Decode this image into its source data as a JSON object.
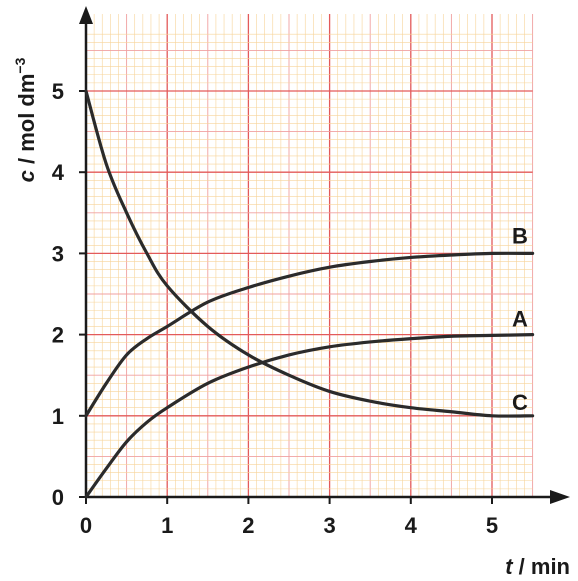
{
  "chart_data": {
    "type": "line",
    "xlabel": {
      "var": "t",
      "rest": " / min"
    },
    "ylabel": {
      "var": "c",
      "rest": " / mol dm",
      "sup": "−3"
    },
    "xlim": [
      0,
      5.5
    ],
    "ylim": [
      0,
      5.7
    ],
    "x_ticks": [
      0,
      1,
      2,
      3,
      4,
      5
    ],
    "y_ticks": [
      0,
      1,
      2,
      3,
      4,
      5
    ],
    "grid": true,
    "colors": {
      "grid_major": "#e35a5a",
      "grid_mid": "#f0a0a0",
      "grid_minor": "#f7d49a",
      "axis": "#1a1a1a",
      "line": "#2b2b2b"
    },
    "series": [
      {
        "name": "A",
        "x": [
          0,
          0.25,
          0.5,
          0.75,
          1,
          1.5,
          2,
          2.5,
          3,
          3.5,
          4,
          4.5,
          5,
          5.5
        ],
        "y": [
          0,
          0.35,
          0.68,
          0.92,
          1.1,
          1.4,
          1.6,
          1.75,
          1.85,
          1.91,
          1.95,
          1.98,
          1.99,
          2.0
        ]
      },
      {
        "name": "B",
        "x": [
          0,
          0.25,
          0.5,
          0.75,
          1,
          1.5,
          2,
          2.5,
          3,
          3.5,
          4,
          4.5,
          5,
          5.5
        ],
        "y": [
          1,
          1.4,
          1.75,
          1.95,
          2.1,
          2.4,
          2.58,
          2.72,
          2.83,
          2.9,
          2.95,
          2.98,
          3.0,
          3.0
        ]
      },
      {
        "name": "C",
        "x": [
          0,
          0.25,
          0.5,
          0.75,
          1,
          1.5,
          2,
          2.5,
          3,
          3.5,
          4,
          4.5,
          5,
          5.5
        ],
        "y": [
          5,
          4.1,
          3.5,
          3.0,
          2.6,
          2.1,
          1.75,
          1.5,
          1.3,
          1.18,
          1.1,
          1.05,
          1.0,
          1.0
        ]
      }
    ]
  }
}
